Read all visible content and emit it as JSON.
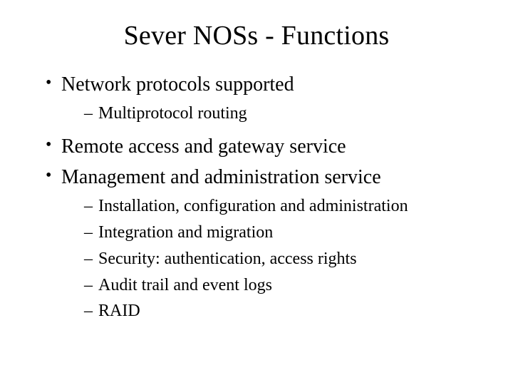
{
  "title": "Sever NOSs - Functions",
  "bullets": [
    {
      "text": "Network protocols supported",
      "sub": [
        "Multiprotocol routing"
      ]
    },
    {
      "text": "Remote access and gateway service",
      "sub": []
    },
    {
      "text": "Management and administration service",
      "sub": [
        "Installation, configuration and administration",
        "Integration and migration",
        "Security: authentication, access rights",
        "Audit trail and event logs",
        "RAID"
      ]
    }
  ],
  "style": {
    "background_color": "#ffffff",
    "text_color": "#000000",
    "font_family": "Times New Roman",
    "title_fontsize_pt": 28,
    "level1_fontsize_pt": 21,
    "level2_fontsize_pt": 18,
    "level1_marker": "•",
    "level2_marker": "–"
  }
}
